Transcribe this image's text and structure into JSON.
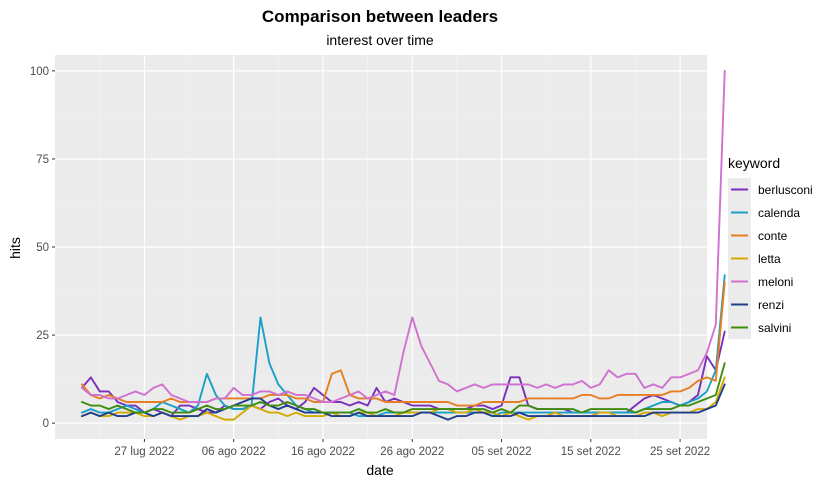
{
  "chart_data": {
    "type": "line",
    "title": "Comparison between leaders",
    "subtitle": "interest over time",
    "xlabel": "date",
    "ylabel": "hits",
    "x_start": "2022-07-20",
    "x_end": "2022-09-25",
    "ylim": [
      0,
      100
    ],
    "grid": true,
    "legend_title": "keyword",
    "legend_position": "right",
    "x_ticks": [
      {
        "date": "2022-07-27",
        "label": "27 lug 2022"
      },
      {
        "date": "2022-08-06",
        "label": "06 ago 2022"
      },
      {
        "date": "2022-08-16",
        "label": "16 ago 2022"
      },
      {
        "date": "2022-08-26",
        "label": "26 ago 2022"
      },
      {
        "date": "2022-09-05",
        "label": "05 set 2022"
      },
      {
        "date": "2022-09-15",
        "label": "15 set 2022"
      },
      {
        "date": "2022-09-25",
        "label": "25 set 2022"
      }
    ],
    "y_ticks": [
      0,
      25,
      50,
      75,
      100
    ],
    "series": [
      {
        "name": "berlusconi",
        "color": "#7b2fbe",
        "values": [
          10,
          13,
          9,
          9,
          6,
          5,
          5,
          3,
          4,
          3,
          2,
          5,
          5,
          4,
          3,
          3,
          5,
          4,
          4,
          5,
          4,
          6,
          7,
          5,
          4,
          6,
          10,
          8,
          6,
          6,
          5,
          6,
          5,
          10,
          6,
          7,
          6,
          5,
          5,
          5,
          4,
          4,
          4,
          4,
          5,
          5,
          4,
          5,
          13,
          13,
          5,
          4,
          4,
          4,
          4,
          3,
          3,
          3,
          3,
          3,
          3,
          3,
          5,
          7,
          8,
          7,
          6,
          5,
          6,
          8,
          19,
          15,
          26
        ]
      },
      {
        "name": "calenda",
        "color": "#1aa0c8",
        "values": [
          3,
          4,
          3,
          3,
          4,
          5,
          4,
          3,
          4,
          6,
          5,
          4,
          3,
          5,
          14,
          8,
          5,
          4,
          4,
          5,
          30,
          17,
          11,
          8,
          5,
          4,
          3,
          3,
          3,
          3,
          3,
          2,
          2,
          2,
          3,
          3,
          3,
          3,
          3,
          3,
          3,
          3,
          3,
          3,
          3,
          3,
          2,
          3,
          3,
          3,
          3,
          3,
          3,
          3,
          3,
          3,
          3,
          3,
          3,
          3,
          3,
          3,
          3,
          4,
          5,
          6,
          6,
          5,
          6,
          7,
          9,
          15,
          42
        ]
      },
      {
        "name": "conte",
        "color": "#e67e22",
        "values": [
          11,
          8,
          7,
          8,
          7,
          6,
          6,
          6,
          6,
          6,
          7,
          6,
          6,
          6,
          6,
          7,
          7,
          7,
          7,
          7,
          7,
          8,
          8,
          8,
          7,
          7,
          6,
          6,
          14,
          15,
          8,
          7,
          7,
          7,
          6,
          6,
          6,
          6,
          6,
          6,
          6,
          6,
          5,
          5,
          5,
          6,
          6,
          6,
          6,
          6,
          7,
          7,
          7,
          7,
          7,
          7,
          8,
          8,
          7,
          7,
          8,
          8,
          8,
          8,
          8,
          8,
          9,
          9,
          10,
          12,
          13,
          12,
          40
        ]
      },
      {
        "name": "letta",
        "color": "#d4aa00",
        "values": [
          2,
          3,
          2,
          2,
          3,
          3,
          3,
          2,
          2,
          3,
          2,
          1,
          2,
          2,
          3,
          2,
          1,
          1,
          3,
          5,
          4,
          3,
          3,
          2,
          3,
          2,
          2,
          2,
          3,
          2,
          2,
          3,
          3,
          2,
          2,
          2,
          3,
          3,
          3,
          3,
          4,
          4,
          3,
          3,
          4,
          3,
          3,
          2,
          3,
          2,
          1,
          2,
          2,
          3,
          2,
          2,
          2,
          2,
          3,
          3,
          2,
          2,
          2,
          3,
          3,
          2,
          3,
          3,
          3,
          4,
          4,
          6,
          13
        ]
      },
      {
        "name": "meloni",
        "color": "#d070d0",
        "values": [
          10,
          8,
          8,
          7,
          7,
          8,
          9,
          8,
          10,
          11,
          8,
          7,
          6,
          6,
          6,
          7,
          7,
          10,
          8,
          8,
          9,
          9,
          8,
          9,
          8,
          8,
          7,
          6,
          6,
          7,
          8,
          9,
          7,
          8,
          9,
          8,
          20,
          30,
          22,
          17,
          12,
          11,
          9,
          10,
          11,
          10,
          11,
          11,
          11,
          11,
          11,
          10,
          11,
          10,
          11,
          11,
          12,
          10,
          11,
          15,
          13,
          14,
          14,
          10,
          11,
          10,
          13,
          13,
          14,
          15,
          20,
          28,
          100
        ]
      },
      {
        "name": "renzi",
        "color": "#1f3e8c",
        "values": [
          2,
          3,
          2,
          3,
          2,
          2,
          3,
          3,
          2,
          3,
          2,
          2,
          2,
          2,
          4,
          3,
          4,
          5,
          6,
          7,
          7,
          5,
          4,
          5,
          4,
          3,
          3,
          3,
          2,
          2,
          2,
          3,
          2,
          2,
          2,
          2,
          2,
          2,
          3,
          3,
          2,
          1,
          2,
          2,
          3,
          3,
          2,
          2,
          2,
          3,
          2,
          2,
          2,
          2,
          2,
          2,
          2,
          2,
          2,
          2,
          2,
          2,
          2,
          2,
          3,
          3,
          3,
          3,
          3,
          3,
          4,
          5,
          11
        ]
      },
      {
        "name": "salvini",
        "color": "#3f8c0f",
        "values": [
          6,
          5,
          5,
          4,
          5,
          4,
          3,
          3,
          4,
          4,
          3,
          3,
          3,
          4,
          5,
          4,
          4,
          5,
          5,
          5,
          6,
          5,
          5,
          6,
          5,
          4,
          4,
          3,
          3,
          3,
          3,
          4,
          3,
          3,
          4,
          3,
          3,
          4,
          4,
          4,
          4,
          4,
          4,
          4,
          4,
          4,
          3,
          4,
          3,
          5,
          5,
          4,
          4,
          4,
          4,
          4,
          3,
          4,
          4,
          4,
          4,
          4,
          3,
          4,
          4,
          4,
          4,
          5,
          5,
          6,
          7,
          8,
          17
        ]
      }
    ]
  }
}
